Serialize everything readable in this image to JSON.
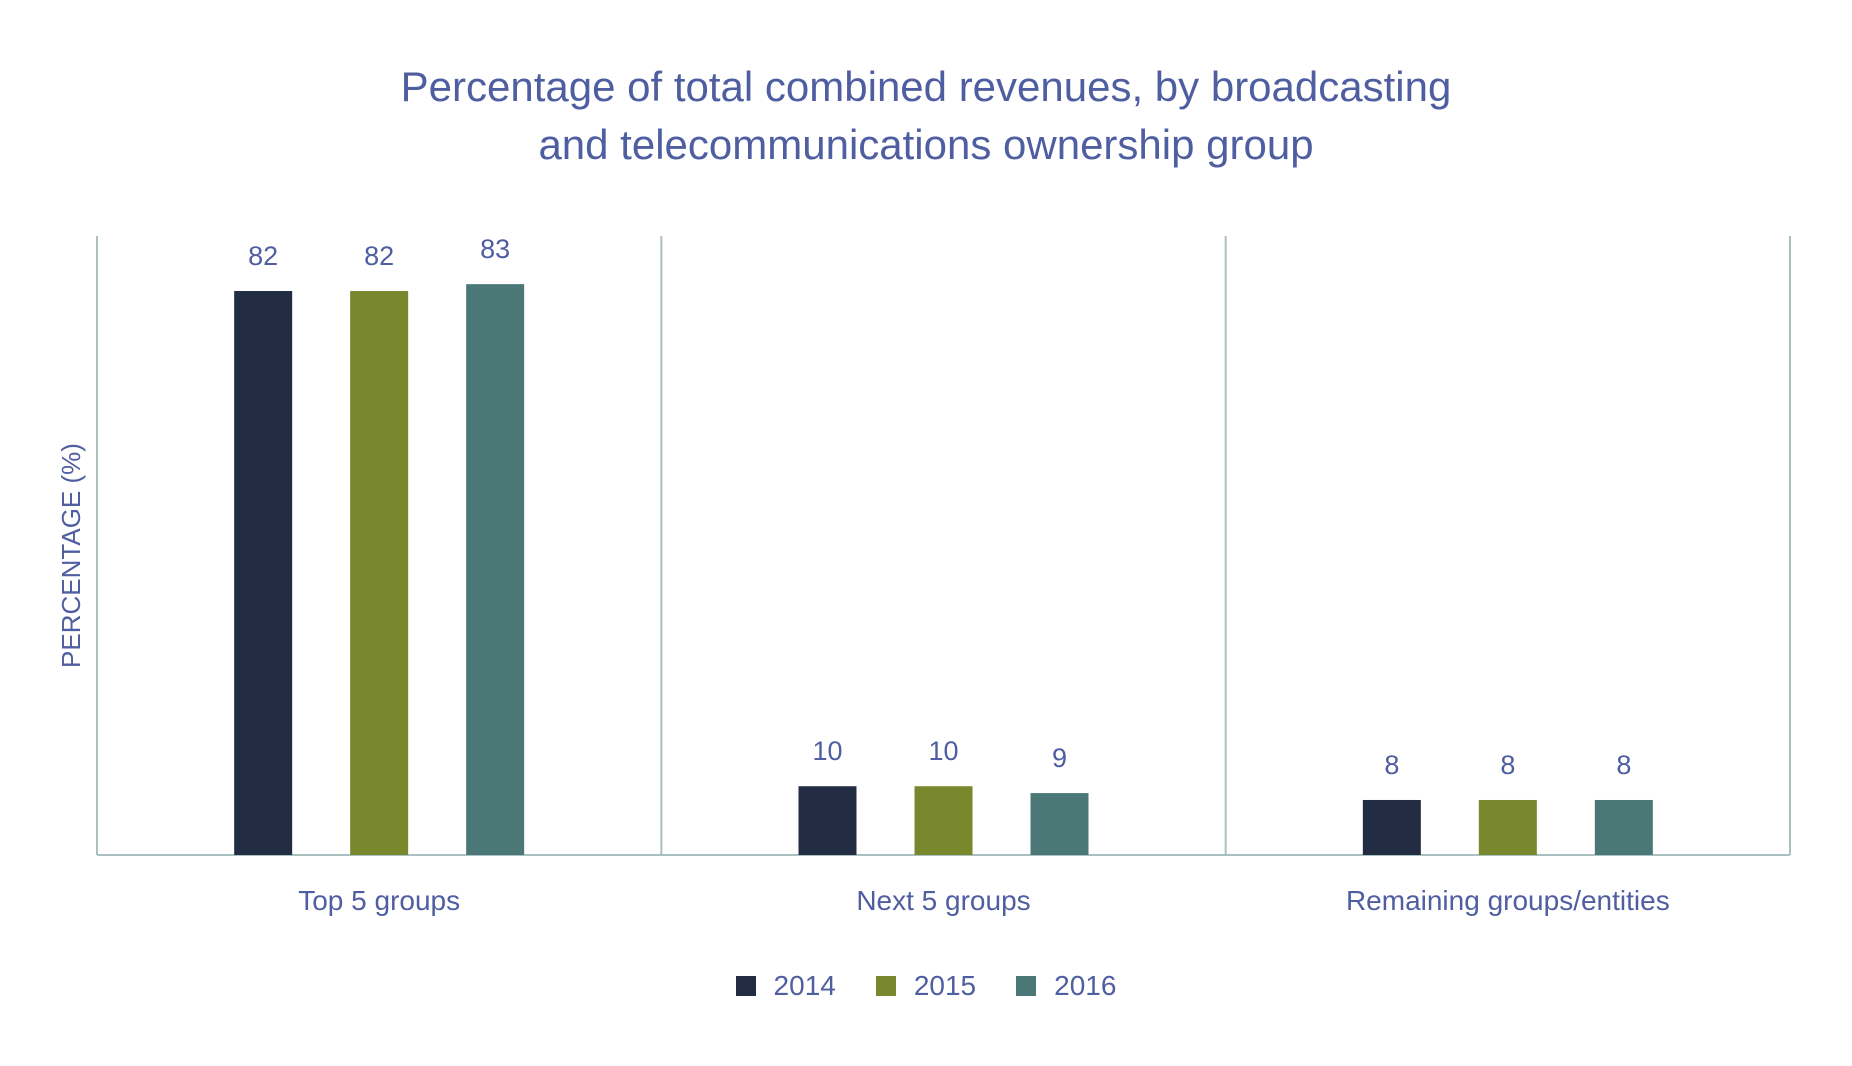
{
  "chart_data": {
    "type": "bar",
    "title_lines": [
      "Percentage of total combined revenues, by broadcasting",
      "and telecommunications ownership group"
    ],
    "ylabel": "PERCENTAGE (%)",
    "xlabel": "",
    "categories": [
      "Top 5 groups",
      "Next 5 groups",
      "Remaining groups/entities"
    ],
    "series": [
      {
        "name": "2014",
        "color": "#222d44",
        "values": [
          82,
          10,
          8
        ]
      },
      {
        "name": "2015",
        "color": "#79872d",
        "values": [
          82,
          10,
          8
        ]
      },
      {
        "name": "2016",
        "color": "#4c7777",
        "values": [
          83,
          9,
          8
        ]
      }
    ],
    "ylim": [
      0,
      90
    ],
    "grid": false,
    "legend_position": "bottom-center",
    "colors": {
      "text": "#4f5ea0",
      "axis": "#a9c1c0"
    }
  }
}
